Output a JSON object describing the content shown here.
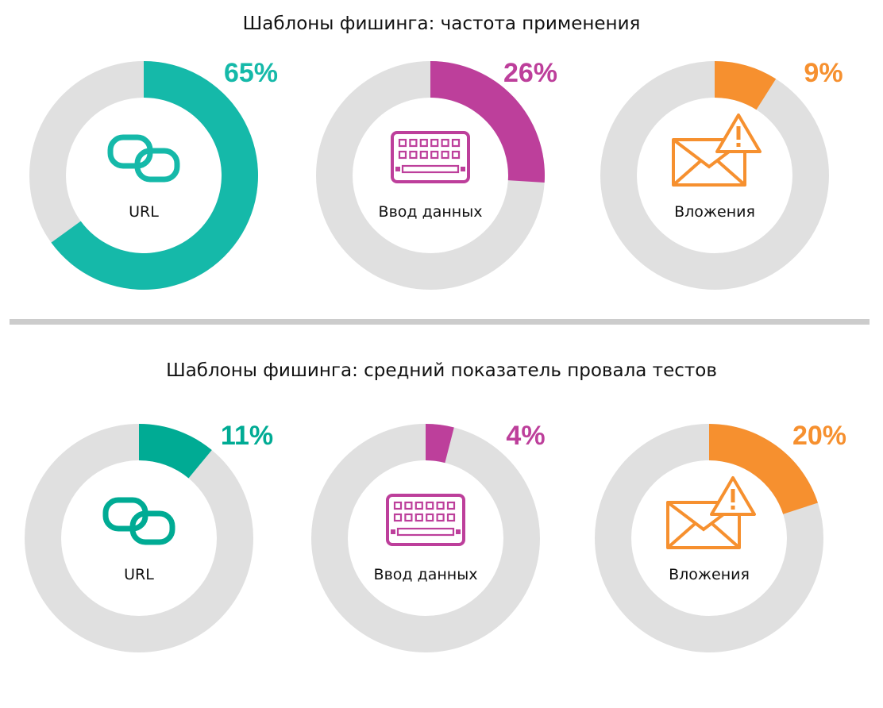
{
  "chart_data": [
    {
      "type": "donut",
      "title": "Шаблоны фишинга: частота применения",
      "categories": [
        "URL",
        "Ввод данных",
        "Вложения"
      ],
      "values": [
        65,
        26,
        9
      ],
      "value_labels": [
        "65%",
        "26%",
        "9%"
      ],
      "colors": [
        "#15b9a9",
        "#bd3f9b",
        "#f6902f"
      ],
      "icons": [
        "link-icon",
        "keyboard-icon",
        "mail-alert-icon"
      ],
      "track_color": "#e0e0e0",
      "max": 100
    },
    {
      "type": "donut",
      "title": "Шаблоны фишинга: средний показатель провала тестов",
      "categories": [
        "URL",
        "Ввод данных",
        "Вложения"
      ],
      "values": [
        11,
        4,
        20
      ],
      "value_labels": [
        "11%",
        "4%",
        "20%"
      ],
      "colors": [
        "#00ab94",
        "#bd3f9b",
        "#f6902f"
      ],
      "icons": [
        "link-icon",
        "keyboard-icon",
        "mail-alert-icon"
      ],
      "track_color": "#e0e0e0",
      "max": 100
    }
  ]
}
